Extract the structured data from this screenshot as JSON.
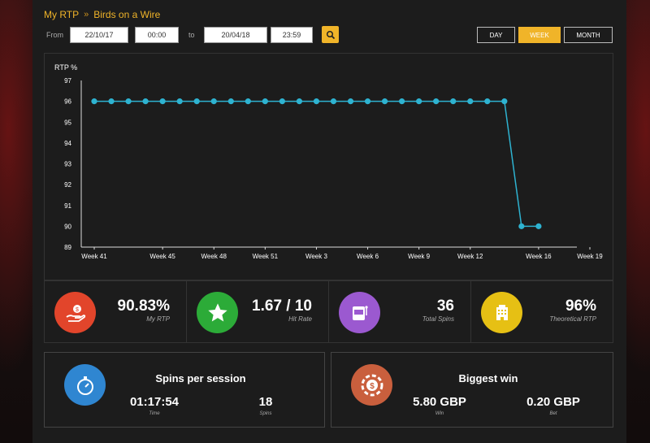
{
  "breadcrumb": {
    "root": "My RTP",
    "separator": "»",
    "current": "Birds on a Wire"
  },
  "filters": {
    "from_label": "From",
    "from_date": "22/10/17",
    "from_time": "00:00",
    "to_label": "to",
    "to_date": "20/04/18",
    "to_time": "23:59"
  },
  "period_tabs": {
    "day": "DAY",
    "week": "WEEK",
    "month": "MONTH",
    "active": "week"
  },
  "chart_data": {
    "type": "line",
    "ylabel": "RTP %",
    "ylim": [
      89,
      97
    ],
    "yticks": [
      "97",
      "96",
      "95",
      "94",
      "93",
      "92",
      "91",
      "90",
      "89"
    ],
    "xticks": [
      "Week 41",
      "Week 45",
      "Week 48",
      "Week 51",
      "Week 3",
      "Week 6",
      "Week 9",
      "Week 12",
      "Week 16",
      "Week 19"
    ],
    "x_index_ticks": [
      0,
      4,
      7,
      10,
      13,
      16,
      19,
      22,
      26,
      29
    ],
    "series": [
      {
        "color": "#2eb3d1",
        "x_index": [
          0,
          1,
          2,
          3,
          4,
          5,
          6,
          7,
          8,
          9,
          10,
          11,
          12,
          13,
          14,
          15,
          16,
          17,
          18,
          19,
          20,
          21,
          22,
          23,
          24,
          25,
          26
        ],
        "values": [
          96,
          96,
          96,
          96,
          96,
          96,
          96,
          96,
          96,
          96,
          96,
          96,
          96,
          96,
          96,
          96,
          96,
          96,
          96,
          96,
          96,
          96,
          96,
          96,
          96,
          90,
          90
        ]
      }
    ],
    "x_max_index": 29,
    "grid": false
  },
  "stats": [
    {
      "value": "90.83%",
      "caption": "My RTP",
      "icon": "hand-money-icon",
      "color": "#e2452b"
    },
    {
      "value": "1.67 / 10",
      "caption": "Hit Rate",
      "icon": "star-icon",
      "color": "#2cab38"
    },
    {
      "value": "36",
      "caption": "Total Spins",
      "icon": "slot-machine-icon",
      "color": "#9b59d0"
    },
    {
      "value": "96%",
      "caption": "Theoretical RTP",
      "icon": "building-icon",
      "color": "#e6c014"
    }
  ],
  "spins_card": {
    "title": "Spins per session",
    "time_value": "01:17:54",
    "time_label": "Time",
    "spins_value": "18",
    "spins_label": "Spins",
    "icon": "stopwatch-icon",
    "color": "#2f86d1"
  },
  "win_card": {
    "title": "Biggest win",
    "win_value": "5.80 GBP",
    "win_label": "Win",
    "bet_value": "0.20 GBP",
    "bet_label": "Bet",
    "icon": "chip-icon",
    "color": "#c95f3d"
  }
}
